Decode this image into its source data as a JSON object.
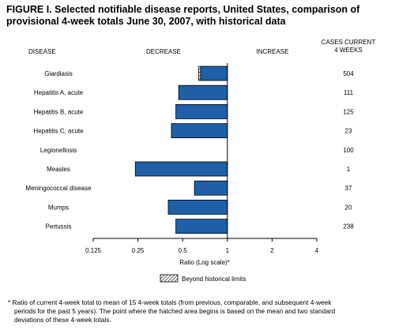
{
  "chart_data": {
    "type": "bar",
    "title_line1": "FIGURE I. Selected notifiable disease reports, United States, comparison of",
    "title_line2": "provisional 4-week totals June 30, 2007, with historical data",
    "header_disease": "DISEASE",
    "header_decrease": "DECREASE",
    "header_increase": "INCREASE",
    "header_cases_line1": "CASES CURRENT",
    "header_cases_line2": "4 WEEKS",
    "xlabel": "Ratio (Log scale)*",
    "x_scale": "log2",
    "xlim": [
      0.125,
      4
    ],
    "ticks": [
      "0.125",
      "0.25",
      "0.5",
      "1",
      "2",
      "4"
    ],
    "tick_values": [
      0.125,
      0.25,
      0.5,
      1,
      2,
      4
    ],
    "baseline": 1,
    "categories": [
      "Giardiasis",
      "Hepatitis A, acute",
      "Hepatitis B, acute",
      "Hepatitis C, acute",
      "Legionellosis",
      "Measles",
      "Meningococcal disease",
      "Mumps",
      "Pertussis"
    ],
    "values": [
      0.66,
      0.47,
      0.45,
      0.42,
      1.0,
      0.24,
      0.6,
      0.4,
      0.45
    ],
    "hatched_from": [
      0.64,
      null,
      null,
      null,
      null,
      null,
      null,
      null,
      null
    ],
    "cases": [
      "504",
      "111",
      "125",
      "23",
      "100",
      "1",
      "37",
      "20",
      "238"
    ],
    "legend": {
      "label": "Beyond historical limits"
    },
    "colors": {
      "bar": "#1f5fa8",
      "bar_edge": "#000000",
      "axis": "#000000"
    }
  },
  "footnote": {
    "line1": "* Ratio of current 4-week total to mean of 15 4-week totals (from previous, comparable, and subsequent 4-week",
    "line2": "periods for the past 5 years). The point where the hatched area begins is based on the mean and two standard",
    "line3": "deviations of these 4-week totals."
  }
}
